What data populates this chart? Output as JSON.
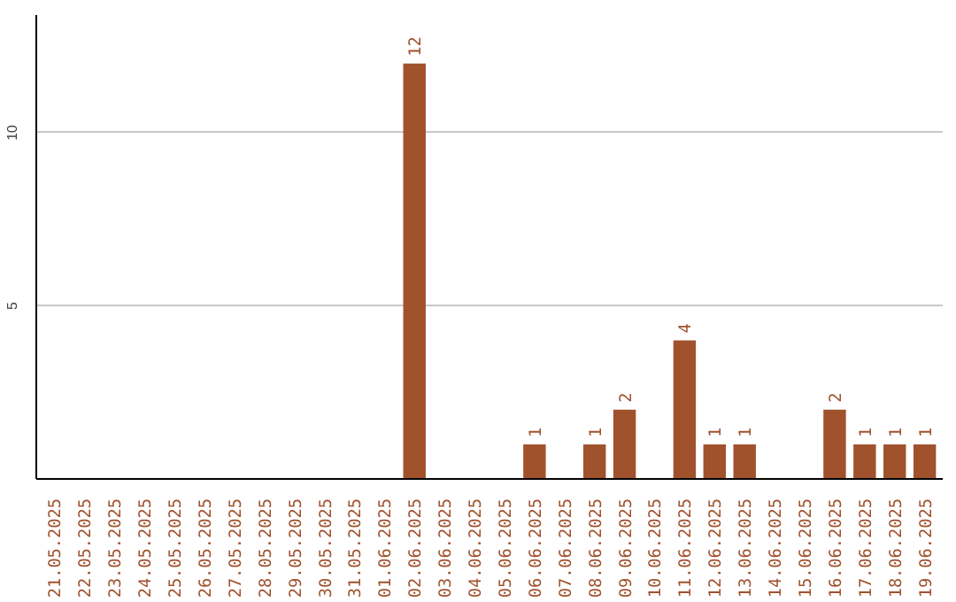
{
  "chart_data": {
    "type": "bar",
    "categories": [
      "21.05.2025",
      "22.05.2025",
      "23.05.2025",
      "24.05.2025",
      "25.05.2025",
      "26.05.2025",
      "27.05.2025",
      "28.05.2025",
      "29.05.2025",
      "30.05.2025",
      "31.05.2025",
      "01.06.2025",
      "02.06.2025",
      "03.06.2025",
      "04.06.2025",
      "05.06.2025",
      "06.06.2025",
      "07.06.2025",
      "08.06.2025",
      "09.06.2025",
      "10.06.2025",
      "11.06.2025",
      "12.06.2025",
      "13.06.2025",
      "14.06.2025",
      "15.06.2025",
      "16.06.2025",
      "17.06.2025",
      "18.06.2025",
      "19.06.2025"
    ],
    "values": [
      0,
      0,
      0,
      0,
      0,
      0,
      0,
      0,
      0,
      0,
      0,
      0,
      12,
      0,
      0,
      0,
      1,
      0,
      1,
      2,
      0,
      4,
      1,
      1,
      0,
      0,
      2,
      1,
      1,
      1
    ],
    "value_labels": [
      null,
      null,
      null,
      null,
      null,
      null,
      null,
      null,
      null,
      null,
      null,
      null,
      "12",
      null,
      null,
      null,
      "1",
      null,
      "1",
      "2",
      null,
      "4",
      "1",
      "1",
      null,
      null,
      "2",
      "1",
      "1",
      "1"
    ],
    "color": "#a0522d",
    "ylim": [
      0,
      13.4
    ],
    "yticks": [
      5,
      10
    ],
    "grid": "y"
  }
}
